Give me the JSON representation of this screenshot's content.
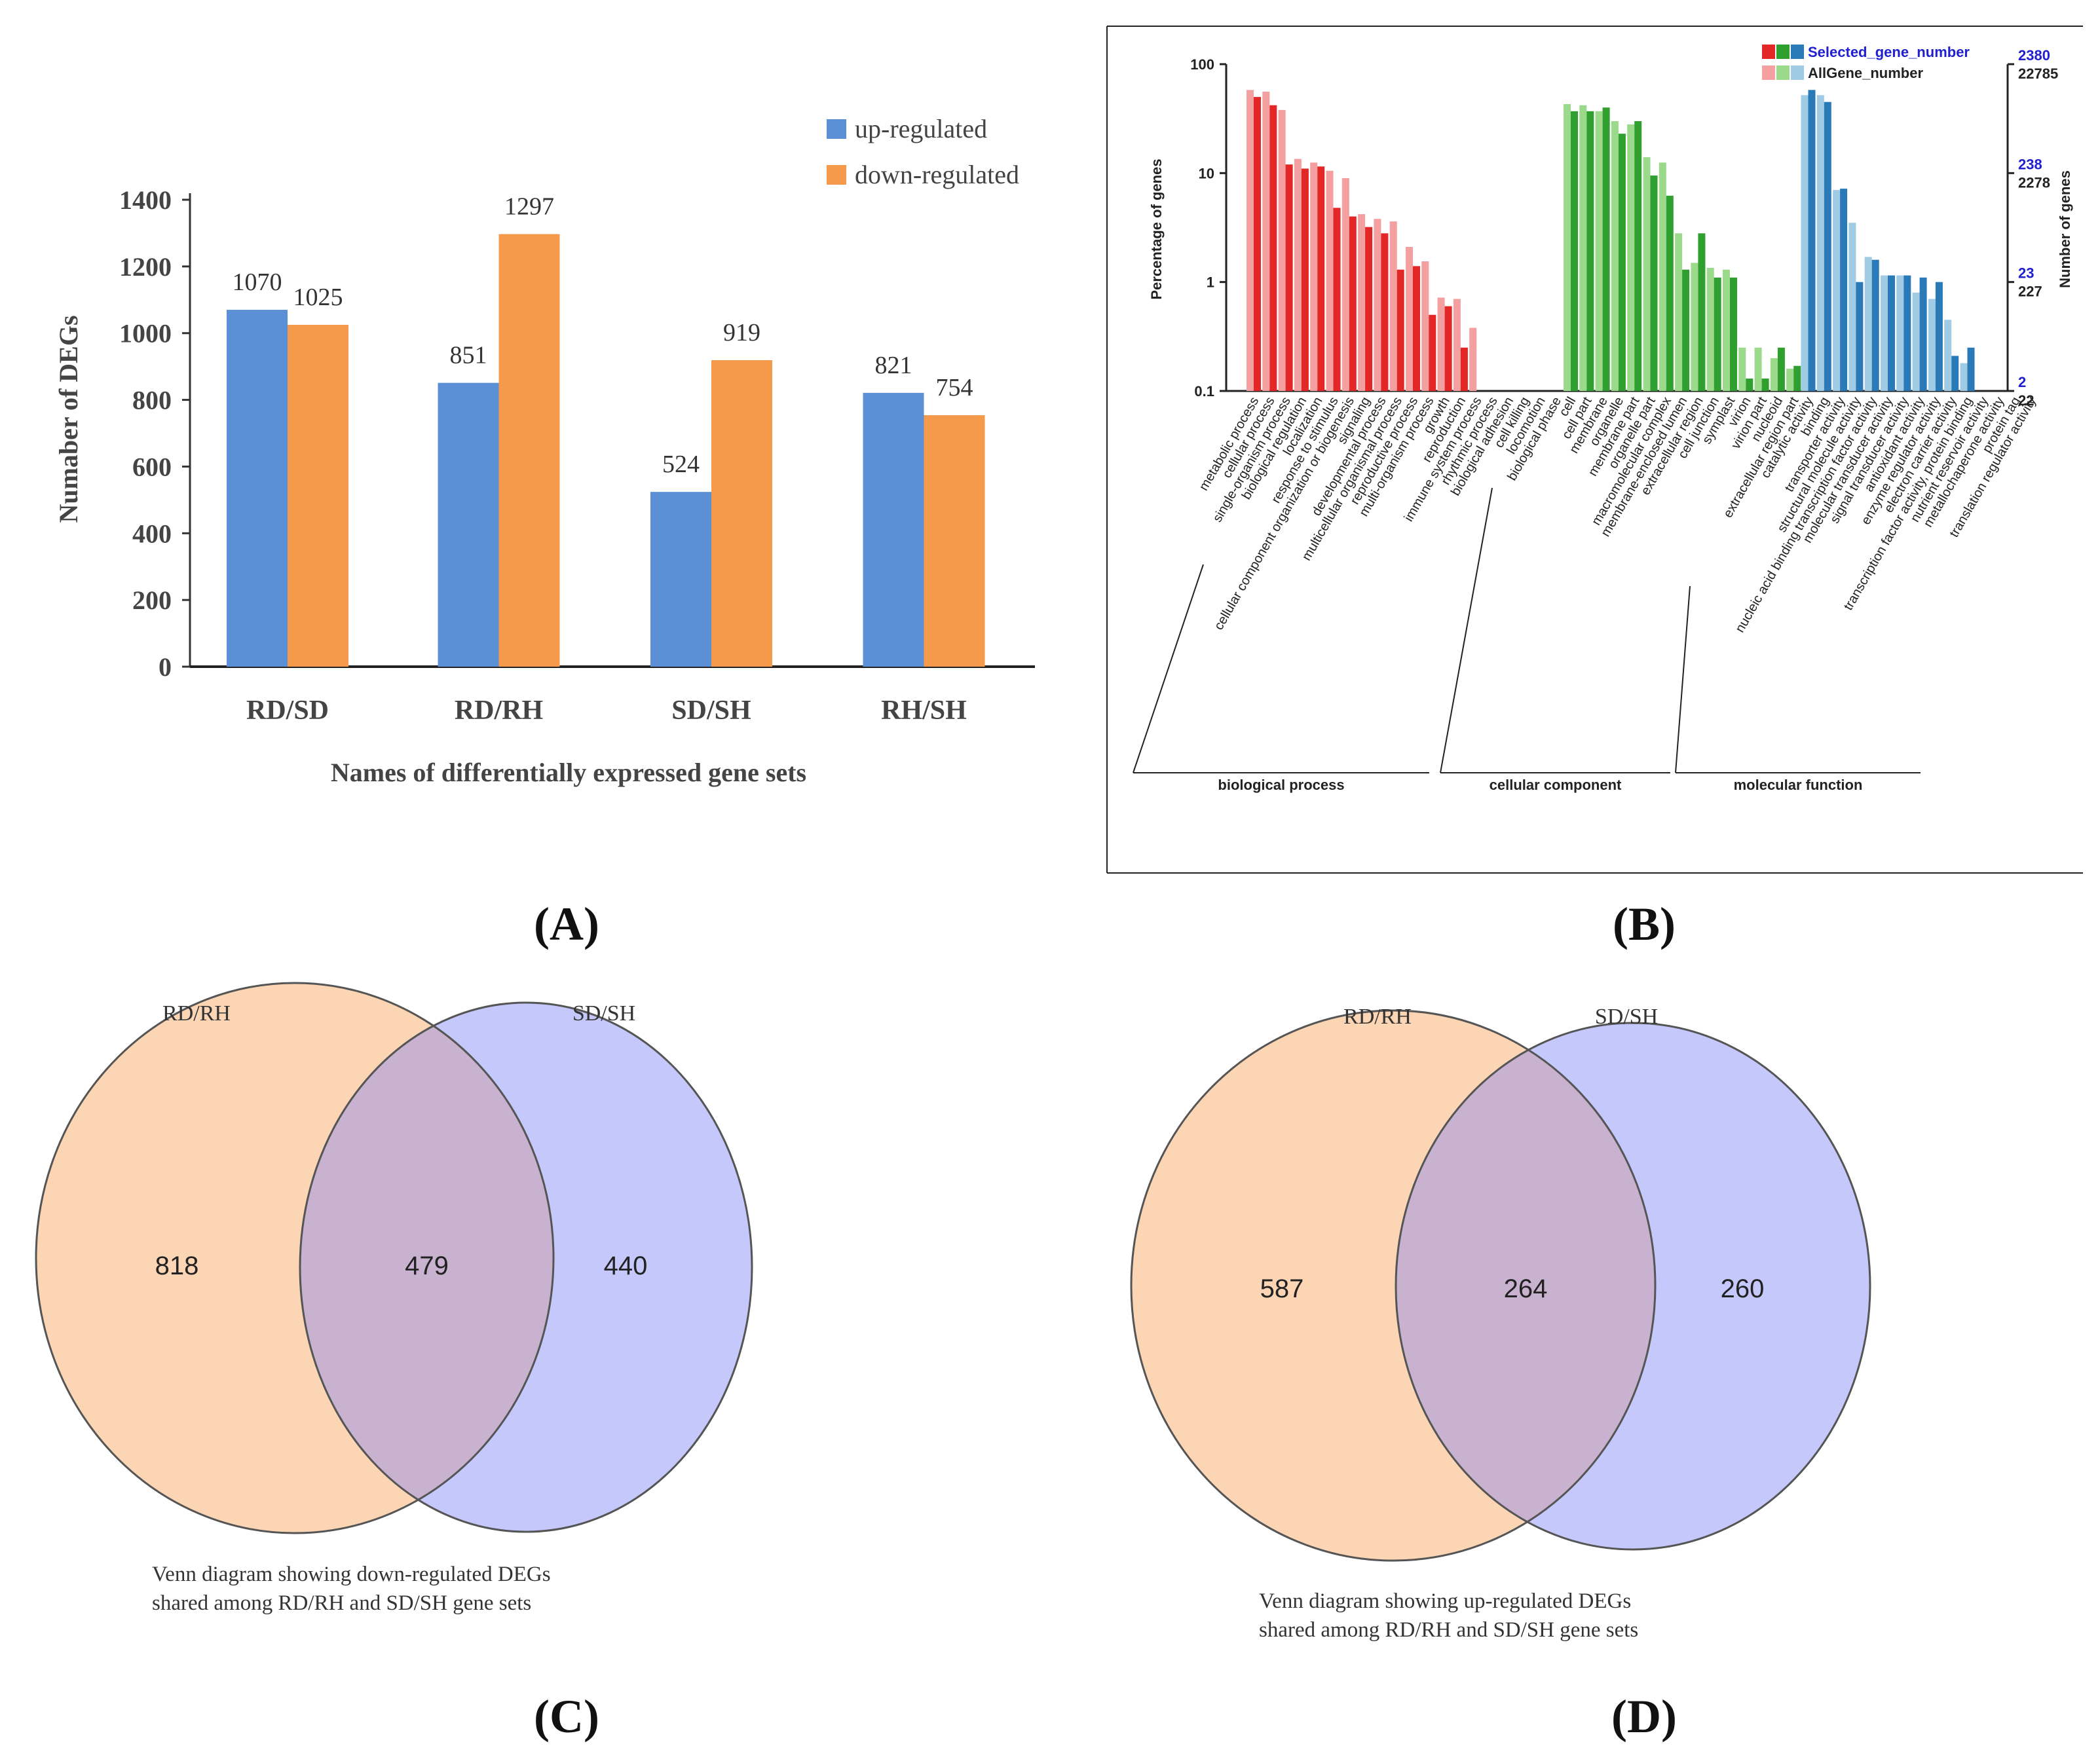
{
  "chart_data": [
    {
      "panel": "A",
      "type": "bar",
      "title": "",
      "xlabel": "Names of differentially expressed gene sets",
      "ylabel": "Numaber of DEGs",
      "ylim": [
        0,
        1400
      ],
      "yticks": [
        0,
        200,
        400,
        600,
        800,
        1000,
        1200,
        1400
      ],
      "categories": [
        "RD/SD",
        "RD/RH",
        "SD/SH",
        "RH/SH"
      ],
      "series": [
        {
          "name": "up-regulated",
          "color": "#5b8fd6",
          "values": [
            1070,
            851,
            524,
            821
          ]
        },
        {
          "name": "down-regulated",
          "color": "#f59a4a",
          "values": [
            1025,
            1297,
            919,
            754
          ]
        }
      ],
      "legend": "top-right"
    },
    {
      "panel": "B",
      "type": "bar",
      "scale": "log",
      "ylabel": "Percentage of genes",
      "y2label": "Number of genes",
      "yticks": [
        "100",
        "10",
        "1",
        "0.1"
      ],
      "y2ticks_selected": [
        "2380",
        "238",
        "23",
        "2"
      ],
      "y2ticks_all": [
        "22785",
        "2278",
        "227",
        "22"
      ],
      "legend": [
        "Selected_gene_number",
        "AllGene_number"
      ],
      "groups": [
        {
          "name": "biological process",
          "color_sel": "#e32626",
          "color_all": "#f4a0a0",
          "terms": [
            "metabolic process",
            "cellular process",
            "single-organism process",
            "biological regulation",
            "localization",
            "response to stimulus",
            "cellular component organization or biogenesis",
            "signaling",
            "developmental process",
            "multicellular organismal process",
            "reproductive process",
            "multi-organism process",
            "growth",
            "reproduction",
            "immune system process",
            "rhythmic process",
            "biological adhesion",
            "cell killing",
            "locomotion",
            "biological phase"
          ],
          "selected": [
            50,
            42,
            12,
            11,
            11.5,
            4.8,
            4,
            3.2,
            2.8,
            1.3,
            1.4,
            0.5,
            0.6,
            0.25,
            null,
            null,
            null,
            null,
            null,
            null
          ],
          "all": [
            58,
            56,
            38,
            13.5,
            12.5,
            10.5,
            9,
            4.2,
            3.8,
            3.6,
            2.1,
            1.55,
            0.72,
            0.7,
            0.38,
            null,
            null,
            null,
            null,
            null
          ]
        },
        {
          "name": "cellular component",
          "color_sel": "#2fa02f",
          "color_all": "#9bd98b",
          "terms": [
            "cell",
            "cell part",
            "membrane",
            "organelle",
            "membrane part",
            "organelle part",
            "macromolecular complex",
            "membrane-enclosed lumen",
            "extracellular region",
            "cell junction",
            "symplast",
            "virion",
            "virion part",
            "nucleoid",
            "extracellular region part"
          ],
          "selected": [
            37,
            37,
            40,
            23,
            30,
            9.5,
            6.2,
            1.3,
            2.8,
            1.1,
            1.1,
            0.13,
            0.13,
            0.25,
            0.17
          ],
          "all": [
            43,
            42,
            37,
            30,
            28,
            14,
            12.5,
            2.8,
            1.5,
            1.35,
            1.3,
            0.25,
            0.25,
            0.2,
            0.16
          ]
        },
        {
          "name": "molecular function",
          "color_sel": "#2a7ab8",
          "color_all": "#9fcbe4",
          "terms": [
            "catalytic activity",
            "binding",
            "transporter activity",
            "structural molecule activity",
            "nucleic acid binding transcription factor activity",
            "molecular transducer activity",
            "signal transducer activity",
            "antioxidant activity",
            "enzyme regulator activity",
            "electron carrier activity",
            "transcription factor activity, protein binding",
            "nutrient reservoir activity",
            "metallochaperone activity",
            "protein tag",
            "translation regulator activity"
          ],
          "selected": [
            58,
            45,
            7.2,
            1.0,
            1.6,
            1.15,
            1.15,
            1.1,
            1.0,
            0.21,
            0.25,
            null,
            null,
            null,
            null
          ],
          "all": [
            52,
            52,
            7,
            3.5,
            1.7,
            1.15,
            1.15,
            0.8,
            0.7,
            0.45,
            0.18,
            null,
            null,
            null,
            null
          ]
        }
      ]
    },
    {
      "panel": "C",
      "type": "venn",
      "sets": [
        "RD/RH",
        "SD/SH"
      ],
      "values": {
        "left_only": 818,
        "intersection": 479,
        "right_only": 440
      },
      "caption_line1": "Venn diagram showing  down-regulated DEGs",
      "caption_line2": "shared among RD/RH and SD/SH gene sets"
    },
    {
      "panel": "D",
      "type": "venn",
      "sets": [
        "RD/RH",
        "SD/SH"
      ],
      "values": {
        "left_only": 587,
        "intersection": 264,
        "right_only": 260
      },
      "caption_line1": "Venn diagram showing up-regulated DEGs",
      "caption_line2": "shared among RD/RH and SD/SH gene sets"
    }
  ],
  "panel_labels": [
    "(A)",
    "(B)",
    "(C)",
    "(D)"
  ],
  "venn_colors": {
    "left": "#fcd5b5",
    "right": "#c5c8fb",
    "overlap": "#c8b2cf",
    "stroke": "#555555"
  }
}
